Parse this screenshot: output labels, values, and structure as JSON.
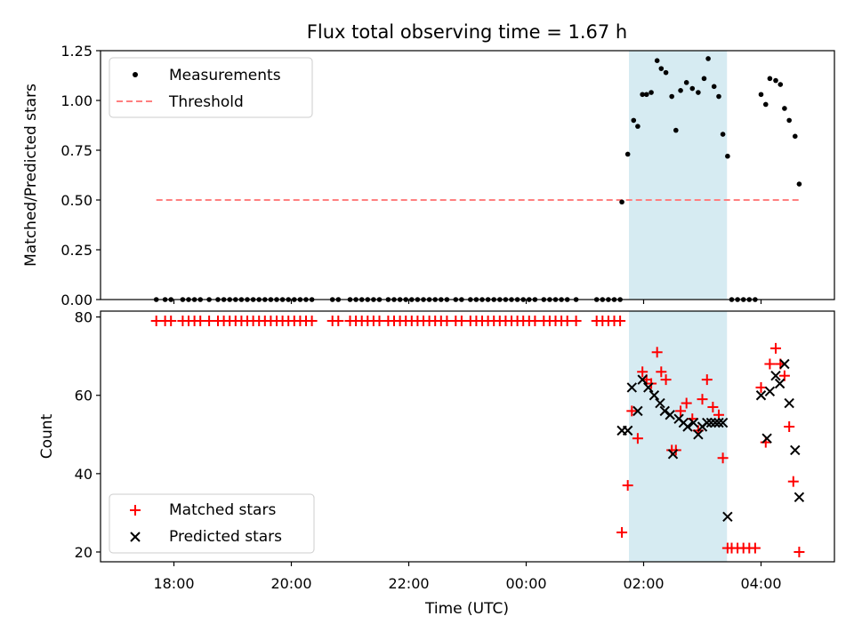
{
  "chart_data": {
    "type": "scatter",
    "title": "Flux total observing time = 1.67 h",
    "xlabel": "Time (UTC)",
    "x_units": "hours since 00:00 UTC",
    "x_ticks": [
      {
        "value": -6,
        "label": "18:00"
      },
      {
        "value": -4,
        "label": "20:00"
      },
      {
        "value": -2,
        "label": "22:00"
      },
      {
        "value": 0,
        "label": "00:00"
      },
      {
        "value": 2,
        "label": "02:00"
      },
      {
        "value": 4,
        "label": "04:00"
      }
    ],
    "xlim": [
      -7.25,
      5.25
    ],
    "shaded_interval": {
      "start": 1.75,
      "end": 3.42,
      "color": "#add8e6"
    },
    "panels": [
      {
        "name": "ratio",
        "ylabel": "Matched/Predicted stars",
        "ylim": [
          0,
          1.25
        ],
        "y_ticks": [
          "0.00",
          "0.25",
          "0.50",
          "0.75",
          "1.00",
          "1.25"
        ],
        "y_tick_values": [
          0,
          0.25,
          0.5,
          0.75,
          1.0,
          1.25
        ],
        "legend": {
          "location": "upper left",
          "entries": [
            "Measurements",
            "Threshold"
          ]
        },
        "threshold": {
          "name": "Threshold",
          "value": 0.5,
          "x_start": -6.3,
          "x_end": 4.65,
          "color": "#ff7f7f"
        },
        "measurements": {
          "name": "Measurements",
          "color": "#000000",
          "points": [
            [
              -6.3,
              0
            ],
            [
              -6.15,
              0
            ],
            [
              -6.05,
              0
            ],
            [
              -5.85,
              0
            ],
            [
              -5.75,
              0
            ],
            [
              -5.65,
              0
            ],
            [
              -5.55,
              0
            ],
            [
              -5.4,
              0
            ],
            [
              -5.25,
              0
            ],
            [
              -5.15,
              0
            ],
            [
              -5.05,
              0
            ],
            [
              -4.95,
              0
            ],
            [
              -4.85,
              0
            ],
            [
              -4.75,
              0
            ],
            [
              -4.65,
              0
            ],
            [
              -4.55,
              0
            ],
            [
              -4.45,
              0
            ],
            [
              -4.35,
              0
            ],
            [
              -4.25,
              0
            ],
            [
              -4.15,
              0
            ],
            [
              -4.05,
              0
            ],
            [
              -3.95,
              0
            ],
            [
              -3.85,
              0
            ],
            [
              -3.75,
              0
            ],
            [
              -3.65,
              0
            ],
            [
              -3.3,
              0
            ],
            [
              -3.2,
              0
            ],
            [
              -3.0,
              0
            ],
            [
              -2.9,
              0
            ],
            [
              -2.8,
              0
            ],
            [
              -2.7,
              0
            ],
            [
              -2.6,
              0
            ],
            [
              -2.5,
              0
            ],
            [
              -2.35,
              0
            ],
            [
              -2.25,
              0
            ],
            [
              -2.15,
              0
            ],
            [
              -2.05,
              0
            ],
            [
              -1.95,
              0
            ],
            [
              -1.85,
              0
            ],
            [
              -1.75,
              0
            ],
            [
              -1.65,
              0
            ],
            [
              -1.55,
              0
            ],
            [
              -1.45,
              0
            ],
            [
              -1.35,
              0
            ],
            [
              -1.2,
              0
            ],
            [
              -1.1,
              0
            ],
            [
              -0.95,
              0
            ],
            [
              -0.85,
              0
            ],
            [
              -0.75,
              0
            ],
            [
              -0.65,
              0
            ],
            [
              -0.55,
              0
            ],
            [
              -0.45,
              0
            ],
            [
              -0.35,
              0
            ],
            [
              -0.25,
              0
            ],
            [
              -0.15,
              0
            ],
            [
              -0.05,
              0
            ],
            [
              0.05,
              0
            ],
            [
              0.15,
              0
            ],
            [
              0.3,
              0
            ],
            [
              0.4,
              0
            ],
            [
              0.5,
              0
            ],
            [
              0.6,
              0
            ],
            [
              0.7,
              0
            ],
            [
              0.85,
              0
            ],
            [
              1.2,
              0
            ],
            [
              1.3,
              0
            ],
            [
              1.4,
              0
            ],
            [
              1.5,
              0
            ],
            [
              1.6,
              0
            ],
            [
              3.5,
              0
            ],
            [
              3.6,
              0
            ],
            [
              3.7,
              0
            ],
            [
              3.8,
              0
            ],
            [
              3.9,
              0
            ],
            [
              1.63,
              0.49
            ],
            [
              1.73,
              0.73
            ],
            [
              1.83,
              0.9
            ],
            [
              1.9,
              0.87
            ],
            [
              1.98,
              1.03
            ],
            [
              2.05,
              1.03
            ],
            [
              2.13,
              1.04
            ],
            [
              2.23,
              1.2
            ],
            [
              2.3,
              1.16
            ],
            [
              2.38,
              1.14
            ],
            [
              2.48,
              1.02
            ],
            [
              2.55,
              0.85
            ],
            [
              2.63,
              1.05
            ],
            [
              2.73,
              1.09
            ],
            [
              2.83,
              1.06
            ],
            [
              2.93,
              1.04
            ],
            [
              3.03,
              1.11
            ],
            [
              3.1,
              1.21
            ],
            [
              3.2,
              1.07
            ],
            [
              3.28,
              1.02
            ],
            [
              3.35,
              0.83
            ],
            [
              3.43,
              0.72
            ],
            [
              4.0,
              1.03
            ],
            [
              4.08,
              0.98
            ],
            [
              4.15,
              1.11
            ],
            [
              4.25,
              1.1
            ],
            [
              4.33,
              1.08
            ],
            [
              4.4,
              0.96
            ],
            [
              4.48,
              0.9
            ],
            [
              4.58,
              0.82
            ],
            [
              4.65,
              0.58
            ]
          ]
        }
      },
      {
        "name": "counts",
        "ylabel": "Count",
        "ylim": [
          17.5,
          81.5
        ],
        "y_ticks": [
          "20",
          "40",
          "60",
          "80"
        ],
        "y_tick_values": [
          20,
          40,
          60,
          80
        ],
        "legend": {
          "location": "lower left",
          "entries": [
            "Matched stars",
            "Predicted stars"
          ]
        },
        "series": [
          {
            "name": "Matched stars",
            "marker": "+",
            "color": "#ff0000",
            "points": [
              [
                -6.3,
                79
              ],
              [
                -6.15,
                79
              ],
              [
                -6.05,
                79
              ],
              [
                -5.85,
                79
              ],
              [
                -5.75,
                79
              ],
              [
                -5.65,
                79
              ],
              [
                -5.55,
                79
              ],
              [
                -5.4,
                79
              ],
              [
                -5.25,
                79
              ],
              [
                -5.15,
                79
              ],
              [
                -5.05,
                79
              ],
              [
                -4.95,
                79
              ],
              [
                -4.85,
                79
              ],
              [
                -4.75,
                79
              ],
              [
                -4.65,
                79
              ],
              [
                -4.55,
                79
              ],
              [
                -4.45,
                79
              ],
              [
                -4.35,
                79
              ],
              [
                -4.25,
                79
              ],
              [
                -4.15,
                79
              ],
              [
                -4.05,
                79
              ],
              [
                -3.95,
                79
              ],
              [
                -3.85,
                79
              ],
              [
                -3.75,
                79
              ],
              [
                -3.65,
                79
              ],
              [
                -3.3,
                79
              ],
              [
                -3.2,
                79
              ],
              [
                -3.0,
                79
              ],
              [
                -2.9,
                79
              ],
              [
                -2.8,
                79
              ],
              [
                -2.7,
                79
              ],
              [
                -2.6,
                79
              ],
              [
                -2.5,
                79
              ],
              [
                -2.35,
                79
              ],
              [
                -2.25,
                79
              ],
              [
                -2.15,
                79
              ],
              [
                -2.05,
                79
              ],
              [
                -1.95,
                79
              ],
              [
                -1.85,
                79
              ],
              [
                -1.75,
                79
              ],
              [
                -1.65,
                79
              ],
              [
                -1.55,
                79
              ],
              [
                -1.45,
                79
              ],
              [
                -1.35,
                79
              ],
              [
                -1.2,
                79
              ],
              [
                -1.1,
                79
              ],
              [
                -0.95,
                79
              ],
              [
                -0.85,
                79
              ],
              [
                -0.75,
                79
              ],
              [
                -0.65,
                79
              ],
              [
                -0.55,
                79
              ],
              [
                -0.45,
                79
              ],
              [
                -0.35,
                79
              ],
              [
                -0.25,
                79
              ],
              [
                -0.15,
                79
              ],
              [
                -0.05,
                79
              ],
              [
                0.05,
                79
              ],
              [
                0.15,
                79
              ],
              [
                0.3,
                79
              ],
              [
                0.4,
                79
              ],
              [
                0.5,
                79
              ],
              [
                0.6,
                79
              ],
              [
                0.7,
                79
              ],
              [
                0.85,
                79
              ],
              [
                1.2,
                79
              ],
              [
                1.3,
                79
              ],
              [
                1.4,
                79
              ],
              [
                1.5,
                79
              ],
              [
                1.6,
                79
              ],
              [
                1.63,
                25
              ],
              [
                1.73,
                37
              ],
              [
                1.8,
                56
              ],
              [
                1.9,
                49
              ],
              [
                1.98,
                66
              ],
              [
                2.05,
                64
              ],
              [
                2.13,
                63
              ],
              [
                2.23,
                71
              ],
              [
                2.3,
                66
              ],
              [
                2.38,
                64
              ],
              [
                2.48,
                46
              ],
              [
                2.55,
                46
              ],
              [
                2.63,
                56
              ],
              [
                2.73,
                58
              ],
              [
                2.83,
                54
              ],
              [
                2.93,
                51
              ],
              [
                3.0,
                59
              ],
              [
                3.08,
                64
              ],
              [
                3.18,
                57
              ],
              [
                3.28,
                55
              ],
              [
                3.35,
                44
              ],
              [
                3.43,
                21
              ],
              [
                3.5,
                21
              ],
              [
                3.6,
                21
              ],
              [
                3.7,
                21
              ],
              [
                3.8,
                21
              ],
              [
                3.9,
                21
              ],
              [
                4.0,
                62
              ],
              [
                4.08,
                48
              ],
              [
                4.15,
                68
              ],
              [
                4.25,
                72
              ],
              [
                4.33,
                68
              ],
              [
                4.4,
                65
              ],
              [
                4.48,
                52
              ],
              [
                4.55,
                38
              ],
              [
                4.65,
                20
              ]
            ]
          },
          {
            "name": "Predicted stars",
            "marker": "x",
            "color": "#000000",
            "points": [
              [
                1.63,
                51
              ],
              [
                1.73,
                51
              ],
              [
                1.8,
                62
              ],
              [
                1.9,
                56
              ],
              [
                1.98,
                64
              ],
              [
                2.08,
                62
              ],
              [
                2.18,
                60
              ],
              [
                2.28,
                58
              ],
              [
                2.36,
                56
              ],
              [
                2.45,
                55
              ],
              [
                2.5,
                45
              ],
              [
                2.6,
                54
              ],
              [
                2.68,
                53
              ],
              [
                2.75,
                52
              ],
              [
                2.85,
                53
              ],
              [
                2.93,
                50
              ],
              [
                3.0,
                52
              ],
              [
                3.08,
                53
              ],
              [
                3.15,
                53
              ],
              [
                3.22,
                53
              ],
              [
                3.28,
                53
              ],
              [
                3.35,
                53
              ],
              [
                3.43,
                29
              ],
              [
                4.0,
                60
              ],
              [
                4.1,
                49
              ],
              [
                4.15,
                61
              ],
              [
                4.25,
                65
              ],
              [
                4.32,
                63
              ],
              [
                4.4,
                68
              ],
              [
                4.48,
                58
              ],
              [
                4.58,
                46
              ],
              [
                4.65,
                34
              ]
            ]
          }
        ]
      }
    ]
  }
}
